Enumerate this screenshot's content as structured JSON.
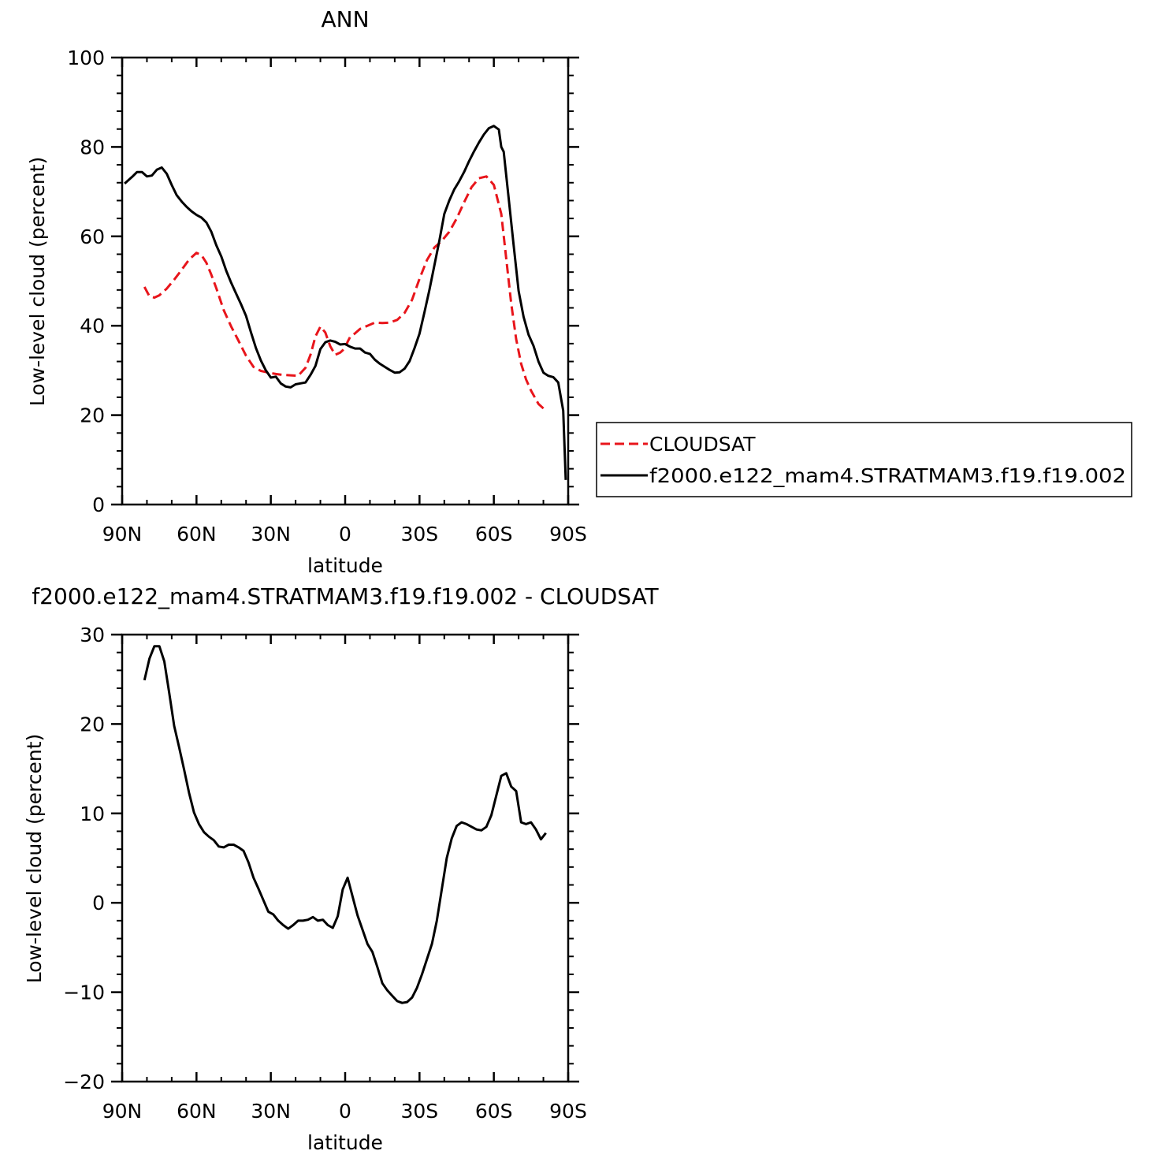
{
  "chart_data": [
    {
      "type": "line",
      "title": "ANN",
      "xlabel": "latitude",
      "ylabel": "Low-level cloud (percent)",
      "xlim": [
        -90,
        90
      ],
      "ylim": [
        0,
        100
      ],
      "xticks": [
        -90,
        -60,
        -30,
        0,
        30,
        60,
        90
      ],
      "xtick_labels": [
        "90N",
        "60N",
        "30N",
        "0",
        "30S",
        "60S",
        "90S"
      ],
      "yticks": [
        0,
        20,
        40,
        60,
        80,
        100
      ],
      "ytick_labels": [
        "0",
        "20",
        "40",
        "60",
        "80",
        "100"
      ],
      "legend_position": "right",
      "series": [
        {
          "name": "CLOUDSAT",
          "color": "#e8151b",
          "dash": "dashed",
          "x": [
            -81,
            -79,
            -77,
            -75,
            -72,
            -69,
            -66,
            -63,
            -60,
            -58,
            -56,
            -54,
            -52,
            -49,
            -46,
            -43,
            -40,
            -37,
            -34,
            -31,
            -28,
            -25,
            -22,
            -19,
            -16,
            -14,
            -12,
            -10,
            -8,
            -6,
            -4,
            -2,
            0,
            1,
            2,
            4,
            6,
            9,
            12,
            15,
            18,
            21,
            24,
            27,
            30,
            33,
            36,
            39,
            42,
            45,
            48,
            51,
            54,
            57,
            60,
            63,
            65,
            67,
            69,
            71,
            73,
            75,
            78,
            81
          ],
          "y": [
            48.7,
            46.6,
            46.3,
            46.8,
            48.3,
            50.3,
            52.5,
            54.8,
            56.3,
            55.8,
            54.1,
            51.4,
            48.4,
            43.5,
            39.8,
            36.6,
            33.3,
            30.8,
            29.9,
            29.5,
            29.2,
            29.0,
            28.9,
            28.8,
            30.6,
            33.5,
            37.6,
            39.8,
            38.5,
            35.4,
            33.5,
            34.0,
            35.0,
            36.4,
            37.5,
            38.3,
            39.3,
            40.0,
            40.7,
            40.6,
            40.7,
            41.3,
            42.9,
            45.8,
            50.5,
            54.7,
            57.5,
            59.0,
            61.0,
            64.0,
            67.6,
            71.0,
            73.0,
            73.4,
            71.5,
            65.0,
            55.0,
            45.0,
            37.0,
            31.5,
            28.0,
            25.5,
            22.5,
            21.0
          ]
        },
        {
          "name": "f2000.e122_mam4.STRATMAM3.f19.f19.002",
          "color": "#000000",
          "dash": "solid",
          "x": [
            -89,
            -86,
            -84,
            -82,
            -80,
            -78,
            -76,
            -74,
            -72,
            -70,
            -68,
            -66,
            -64,
            -62,
            -60,
            -58,
            -56,
            -54,
            -52,
            -50,
            -48,
            -46,
            -44,
            -42,
            -40,
            -38,
            -36,
            -34,
            -32,
            -30,
            -28,
            -26,
            -24,
            -22,
            -20,
            -18,
            -16,
            -14,
            -12,
            -10,
            -8,
            -6,
            -4,
            -2,
            0,
            2,
            4,
            6,
            8,
            10,
            12,
            14,
            16,
            18,
            20,
            22,
            24,
            26,
            28,
            30,
            32,
            34,
            36,
            38,
            40,
            42,
            44,
            46,
            48,
            50,
            52,
            54,
            56,
            58,
            60,
            62,
            63,
            64,
            66,
            68,
            70,
            72,
            74,
            76,
            78,
            80,
            82,
            84,
            86,
            88,
            89
          ],
          "y": [
            71.8,
            73.3,
            74.4,
            74.4,
            73.4,
            73.6,
            74.9,
            75.4,
            74.0,
            71.5,
            69.2,
            67.8,
            66.6,
            65.6,
            64.8,
            64.2,
            63.1,
            61.0,
            58.0,
            55.5,
            52.3,
            49.6,
            47.2,
            44.8,
            42.2,
            38.5,
            35.0,
            32.2,
            30.0,
            28.4,
            28.6,
            27.1,
            26.4,
            26.2,
            26.9,
            27.1,
            27.3,
            29.0,
            31.0,
            34.8,
            36.3,
            36.7,
            36.4,
            35.8,
            35.9,
            35.3,
            34.9,
            34.9,
            34.0,
            33.7,
            32.4,
            31.5,
            30.8,
            30.1,
            29.5,
            29.6,
            30.4,
            32.1,
            35.0,
            38.2,
            43.0,
            48.0,
            53.5,
            59.0,
            65.0,
            68.0,
            70.5,
            72.3,
            74.4,
            76.8,
            79.0,
            81.0,
            82.8,
            84.2,
            84.7,
            83.9,
            80.0,
            78.9,
            68.5,
            58.0,
            47.8,
            42.0,
            38.0,
            35.5,
            32.0,
            29.5,
            28.8,
            28.5,
            27.3,
            21.0,
            5.5
          ]
        }
      ]
    },
    {
      "type": "line",
      "title": "f2000.e122_mam4.STRATMAM3.f19.f19.002 - CLOUDSAT",
      "xlabel": "latitude",
      "ylabel": "Low-level cloud (percent)",
      "xlim": [
        -90,
        90
      ],
      "ylim": [
        -20,
        30
      ],
      "xticks": [
        -90,
        -60,
        -30,
        0,
        30,
        60,
        90
      ],
      "xtick_labels": [
        "90N",
        "60N",
        "30N",
        "0",
        "30S",
        "60S",
        "90S"
      ],
      "yticks": [
        -20,
        -10,
        0,
        10,
        20,
        30
      ],
      "ytick_labels": [
        "−20",
        "−10",
        "0",
        "10",
        "20",
        "30"
      ],
      "series": [
        {
          "color": "#000000",
          "dash": "solid",
          "x": [
            -81,
            -79,
            -77,
            -75,
            -73,
            -71,
            -69,
            -67,
            -65,
            -63,
            -61,
            -59,
            -57,
            -55,
            -53,
            -51,
            -49,
            -47,
            -45,
            -43,
            -41,
            -39,
            -37,
            -35,
            -33,
            -31,
            -29,
            -27,
            -25,
            -23,
            -21,
            -19,
            -17,
            -15,
            -13,
            -11,
            -9,
            -7,
            -5,
            -3,
            -1,
            1,
            3,
            5,
            7,
            9,
            11,
            13,
            15,
            17,
            19,
            21,
            23,
            25,
            27,
            29,
            31,
            33,
            35,
            37,
            39,
            41,
            43,
            45,
            47,
            49,
            51,
            53,
            55,
            57,
            59,
            61,
            63,
            65,
            67,
            69,
            71,
            73,
            75,
            77,
            79,
            81
          ],
          "y": [
            24.9,
            27.3,
            28.7,
            28.7,
            27.0,
            23.5,
            19.8,
            17.4,
            14.9,
            12.3,
            10.1,
            8.8,
            7.9,
            7.4,
            7.0,
            6.3,
            6.2,
            6.5,
            6.5,
            6.2,
            5.8,
            4.5,
            2.8,
            1.6,
            0.3,
            -1.0,
            -1.3,
            -2.0,
            -2.5,
            -2.9,
            -2.5,
            -2.0,
            -2.0,
            -1.9,
            -1.6,
            -2.0,
            -1.9,
            -2.5,
            -2.8,
            -1.5,
            1.5,
            2.8,
            0.7,
            -1.4,
            -3.0,
            -4.6,
            -5.5,
            -7.2,
            -9.0,
            -9.8,
            -10.4,
            -11.0,
            -11.2,
            -11.1,
            -10.6,
            -9.5,
            -8.0,
            -6.3,
            -4.6,
            -2.0,
            1.5,
            5.0,
            7.2,
            8.6,
            9.0,
            8.8,
            8.5,
            8.2,
            8.1,
            8.5,
            9.8,
            12.0,
            14.2,
            14.5,
            13.0,
            12.5,
            9.0,
            8.8,
            9.0,
            8.2,
            7.1,
            7.8
          ]
        }
      ]
    }
  ]
}
